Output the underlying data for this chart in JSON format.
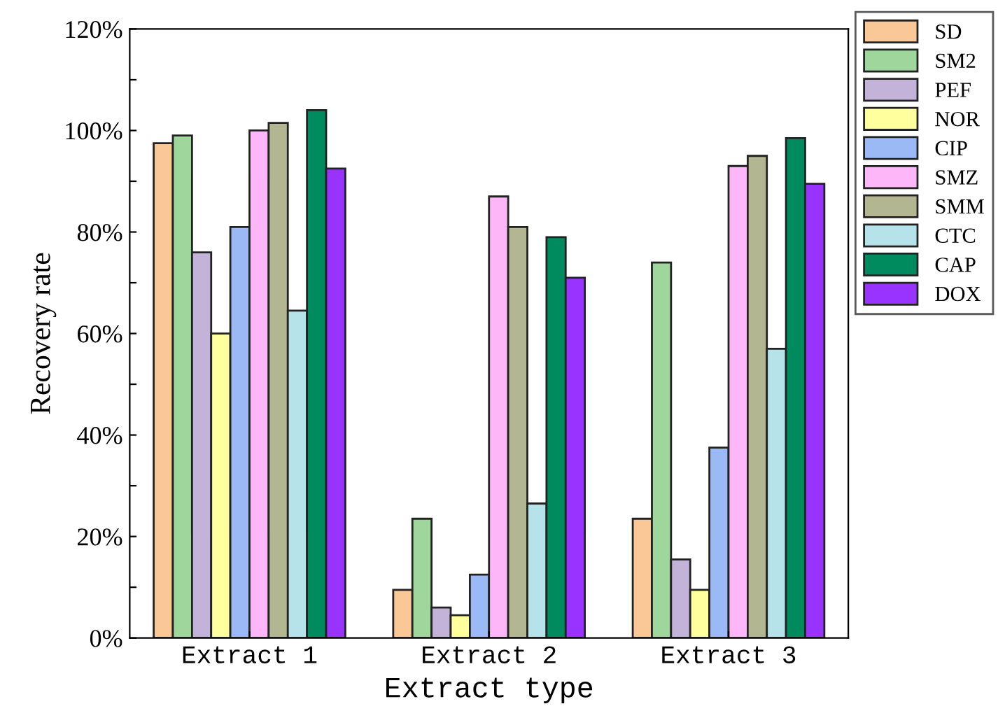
{
  "chart_data": {
    "type": "bar",
    "xlabel": "Extract type",
    "ylabel": "Recovery rate",
    "categories": [
      "Extract 1",
      "Extract 2",
      "Extract 3"
    ],
    "series": [
      {
        "name": "SD",
        "color": "#fac896",
        "values": [
          97.5,
          9.5,
          23.5
        ]
      },
      {
        "name": "SM2",
        "color": "#9fd69b",
        "values": [
          99,
          23.5,
          74
        ]
      },
      {
        "name": "PEF",
        "color": "#c3b3d8",
        "values": [
          76,
          6,
          15.5
        ]
      },
      {
        "name": "NOR",
        "color": "#ffff9e",
        "values": [
          60,
          4.5,
          9.5
        ]
      },
      {
        "name": "CIP",
        "color": "#9bb9f4",
        "values": [
          81,
          12.5,
          37.5
        ]
      },
      {
        "name": "SMZ",
        "color": "#fdb6f8",
        "values": [
          100,
          87,
          93
        ]
      },
      {
        "name": "SMM",
        "color": "#b2b691",
        "values": [
          101.5,
          81,
          95
        ]
      },
      {
        "name": "CTC",
        "color": "#b6e3e9",
        "values": [
          64.5,
          26.5,
          57
        ]
      },
      {
        "name": "CAP",
        "color": "#008b5e",
        "values": [
          104,
          79,
          98.5
        ]
      },
      {
        "name": "DOX",
        "color": "#9933ff",
        "values": [
          92.5,
          71,
          89.5
        ]
      }
    ],
    "ylim": [
      0,
      120
    ],
    "yticks": [
      {
        "value": 0,
        "label": "0%"
      },
      {
        "value": 10,
        "label": null
      },
      {
        "value": 20,
        "label": "20%"
      },
      {
        "value": 30,
        "label": null
      },
      {
        "value": 40,
        "label": "40%"
      },
      {
        "value": 50,
        "label": null
      },
      {
        "value": 60,
        "label": "60%"
      },
      {
        "value": 70,
        "label": null
      },
      {
        "value": 80,
        "label": "80%"
      },
      {
        "value": 90,
        "label": null
      },
      {
        "value": 100,
        "label": "100%"
      },
      {
        "value": 110,
        "label": null
      },
      {
        "value": 120,
        "label": "120%"
      }
    ],
    "grid": false,
    "legend": "right"
  }
}
